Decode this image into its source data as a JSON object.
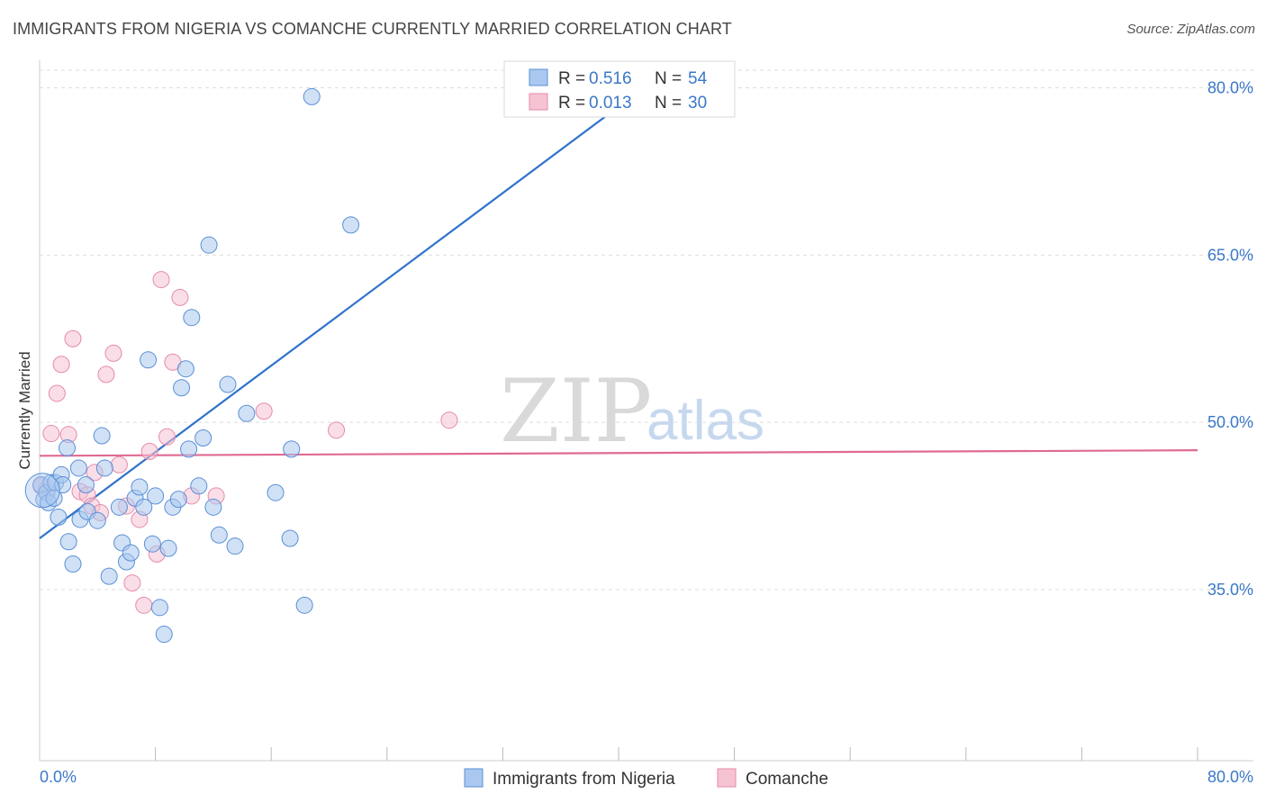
{
  "header": {
    "title": "IMMIGRANTS FROM NIGERIA VS COMANCHE CURRENTLY MARRIED CORRELATION CHART",
    "source": "Source: ZipAtlas.com"
  },
  "watermark": {
    "zip": "ZIP",
    "atlas": "atlas"
  },
  "colors": {
    "blue_fill": "#aac8ef",
    "blue_stroke": "#5a8fd6",
    "blue_line": "#2f72cc",
    "pink_fill": "#f6c3d3",
    "pink_stroke": "#e68aa8",
    "pink_line": "#e06a93",
    "label_blue": "#3b78c8"
  },
  "legend": {
    "series": [
      {
        "r_label": "R =",
        "r_value": "0.516",
        "n_label": "N =",
        "n_value": "54"
      },
      {
        "r_label": "R =",
        "r_value": "0.013",
        "n_label": "N =",
        "n_value": "30"
      }
    ]
  },
  "bottom_legend": {
    "items": [
      "Immigrants from Nigeria",
      "Comanche"
    ]
  },
  "chart_data": {
    "type": "scatter",
    "title": "IMMIGRANTS FROM NIGERIA VS COMANCHE CURRENTLY MARRIED CORRELATION CHART",
    "xlabel": "",
    "ylabel": "Currently Married",
    "xlim": [
      0,
      80
    ],
    "ylim": [
      20,
      86
    ],
    "x_ticks_labels": [
      "0.0%",
      "80.0%"
    ],
    "y_ticks": [
      35,
      50,
      65,
      80
    ],
    "y_tick_labels": [
      "35.0%",
      "50.0%",
      "65.0%",
      "80.0%"
    ],
    "grid": "horizontal dashed",
    "legend_position": "top-center",
    "series": [
      {
        "name": "Immigrants from Nigeria",
        "color": "#5a8fd6",
        "r": 0.516,
        "n": 54,
        "points": [
          [
            0.1,
            44.4
          ],
          [
            0.3,
            43.1
          ],
          [
            0.5,
            43.7
          ],
          [
            0.6,
            42.8
          ],
          [
            0.8,
            44.6
          ],
          [
            1.0,
            43.2
          ],
          [
            1.1,
            44.6
          ],
          [
            1.3,
            41.5
          ],
          [
            1.5,
            45.3
          ],
          [
            1.6,
            44.4
          ],
          [
            1.9,
            47.7
          ],
          [
            2.0,
            39.3
          ],
          [
            2.3,
            37.3
          ],
          [
            2.7,
            45.9
          ],
          [
            2.8,
            41.3
          ],
          [
            3.2,
            44.4
          ],
          [
            3.3,
            42.0
          ],
          [
            4.0,
            41.2
          ],
          [
            4.3,
            48.8
          ],
          [
            4.5,
            45.9
          ],
          [
            4.8,
            36.2
          ],
          [
            5.5,
            42.4
          ],
          [
            5.7,
            39.2
          ],
          [
            6.0,
            37.5
          ],
          [
            6.3,
            38.3
          ],
          [
            6.6,
            43.2
          ],
          [
            6.9,
            44.2
          ],
          [
            7.2,
            42.4
          ],
          [
            7.5,
            55.6
          ],
          [
            7.8,
            39.1
          ],
          [
            8.0,
            43.4
          ],
          [
            8.3,
            33.4
          ],
          [
            8.6,
            31.0
          ],
          [
            8.9,
            38.7
          ],
          [
            9.2,
            42.4
          ],
          [
            9.6,
            43.1
          ],
          [
            9.8,
            53.1
          ],
          [
            10.1,
            54.8
          ],
          [
            10.3,
            47.6
          ],
          [
            10.5,
            59.4
          ],
          [
            11.0,
            44.3
          ],
          [
            11.3,
            48.6
          ],
          [
            11.7,
            65.9
          ],
          [
            12.0,
            42.4
          ],
          [
            12.4,
            39.9
          ],
          [
            13.0,
            53.4
          ],
          [
            13.5,
            38.9
          ],
          [
            14.3,
            50.8
          ],
          [
            16.3,
            43.7
          ],
          [
            17.3,
            39.6
          ],
          [
            17.4,
            47.6
          ],
          [
            18.3,
            33.6
          ],
          [
            18.8,
            79.2
          ],
          [
            21.5,
            67.7
          ]
        ]
      },
      {
        "name": "Comanche",
        "color": "#e68aa8",
        "r": 0.013,
        "n": 30,
        "points": [
          [
            0.1,
            44.3
          ],
          [
            0.5,
            44.0
          ],
          [
            0.8,
            49.0
          ],
          [
            1.2,
            52.6
          ],
          [
            1.5,
            55.2
          ],
          [
            2.0,
            48.9
          ],
          [
            2.3,
            57.5
          ],
          [
            2.8,
            43.8
          ],
          [
            3.3,
            43.5
          ],
          [
            3.6,
            42.5
          ],
          [
            3.8,
            45.5
          ],
          [
            4.2,
            41.9
          ],
          [
            4.6,
            54.3
          ],
          [
            5.1,
            56.2
          ],
          [
            5.5,
            46.2
          ],
          [
            6.0,
            42.5
          ],
          [
            6.4,
            35.6
          ],
          [
            6.9,
            41.3
          ],
          [
            7.2,
            33.6
          ],
          [
            7.6,
            47.4
          ],
          [
            8.1,
            38.2
          ],
          [
            8.4,
            62.8
          ],
          [
            8.8,
            48.7
          ],
          [
            9.2,
            55.4
          ],
          [
            9.7,
            61.2
          ],
          [
            10.5,
            43.4
          ],
          [
            12.2,
            43.4
          ],
          [
            15.5,
            51.0
          ],
          [
            20.5,
            49.3
          ],
          [
            28.3,
            50.2
          ]
        ]
      }
    ]
  }
}
